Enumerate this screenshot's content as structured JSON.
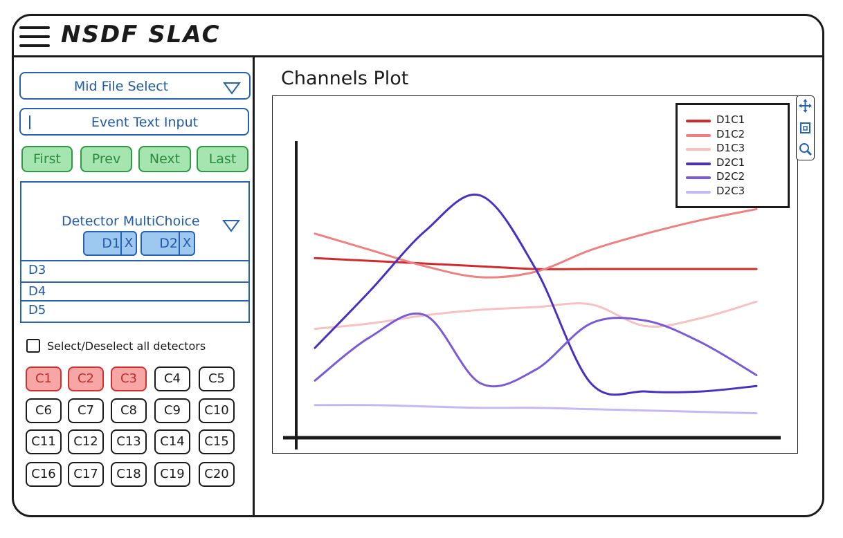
{
  "header": {
    "title": "NSDF SLAC"
  },
  "sidebar": {
    "file_select": {
      "label": "Mid File Select"
    },
    "event_input": {
      "label": "Event Text Input"
    },
    "nav_buttons": [
      "First",
      "Prev",
      "Next",
      "Last"
    ],
    "detector_select": {
      "label": "Detector MultiChoice",
      "selected": [
        "D1",
        "D2"
      ],
      "remove_glyph": "X",
      "options": [
        "D3",
        "D4",
        "D5"
      ]
    },
    "select_all_label": "Select/Deselect all detectors",
    "channels": [
      {
        "label": "C1",
        "selected": true
      },
      {
        "label": "C2",
        "selected": true
      },
      {
        "label": "C3",
        "selected": true
      },
      {
        "label": "C4",
        "selected": false
      },
      {
        "label": "C5",
        "selected": false
      },
      {
        "label": "C6",
        "selected": false
      },
      {
        "label": "C7",
        "selected": false
      },
      {
        "label": "C8",
        "selected": false
      },
      {
        "label": "C9",
        "selected": false
      },
      {
        "label": "C10",
        "selected": false
      },
      {
        "label": "C11",
        "selected": false
      },
      {
        "label": "C12",
        "selected": false
      },
      {
        "label": "C13",
        "selected": false
      },
      {
        "label": "C14",
        "selected": false
      },
      {
        "label": "C15",
        "selected": false
      },
      {
        "label": "C16",
        "selected": false
      },
      {
        "label": "C17",
        "selected": false
      },
      {
        "label": "C18",
        "selected": false
      },
      {
        "label": "C19",
        "selected": false
      },
      {
        "label": "C20",
        "selected": false
      }
    ],
    "colors": {
      "accent_blue": "#2563b0",
      "nav_green": "#a6e4b0",
      "channel_on": "#f7a6a6"
    }
  },
  "main": {
    "plot_title": "Channels Plot",
    "toolbar": [
      "move-icon",
      "box-zoom-icon",
      "zoom-icon"
    ]
  },
  "chart_data": {
    "type": "line",
    "x": [
      0,
      1,
      2,
      3,
      4,
      5,
      6,
      7,
      8
    ],
    "series": [
      {
        "name": "D1C1",
        "color": "#d02b2b",
        "values": [
          5.8,
          5.7,
          5.6,
          5.5,
          5.4,
          5.4,
          5.4,
          5.4,
          5.4
        ]
      },
      {
        "name": "D1C2",
        "color": "#f08080",
        "values": [
          6.7,
          6.1,
          5.5,
          5.1,
          5.3,
          6.1,
          6.7,
          7.2,
          7.6
        ]
      },
      {
        "name": "D1C3",
        "color": "#f9c0c0",
        "values": [
          3.2,
          3.4,
          3.7,
          3.9,
          4.0,
          4.1,
          3.3,
          3.6,
          4.2
        ]
      },
      {
        "name": "D2C1",
        "color": "#4a2fc0",
        "values": [
          2.5,
          4.6,
          6.8,
          8.1,
          5.4,
          1.2,
          0.9,
          0.9,
          1.1
        ]
      },
      {
        "name": "D2C2",
        "color": "#7a5ad8",
        "values": [
          1.3,
          2.9,
          3.7,
          1.2,
          1.7,
          3.4,
          3.5,
          2.7,
          1.5
        ]
      },
      {
        "name": "D2C3",
        "color": "#c6b8f5",
        "values": [
          0.4,
          0.4,
          0.35,
          0.3,
          0.3,
          0.25,
          0.2,
          0.15,
          0.1
        ]
      }
    ],
    "xlim": [
      0,
      8
    ],
    "ylim": [
      -0.8,
      10
    ],
    "legend": "top-right",
    "grid": false
  }
}
